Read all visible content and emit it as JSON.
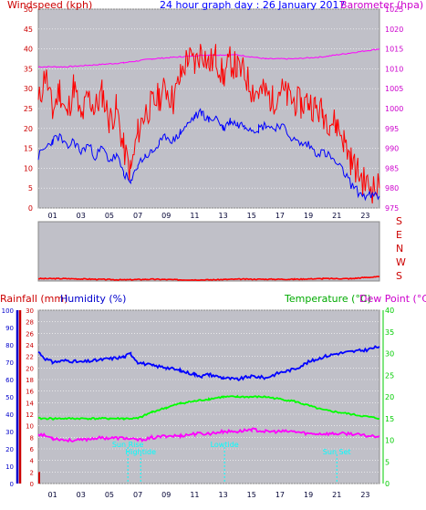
{
  "colors": {
    "plot_bg": "#c0c0c8",
    "wind": "#ff0000",
    "gust": "#0000ff",
    "barometer": "#ff00ff",
    "direction": "#ff0000",
    "rain": "#cc0000",
    "humidity": "#0000ff",
    "temperature": "#00ff00",
    "dewpoint": "#ff00ff",
    "sun_moon": "#00ffff",
    "rain_axis_text": "#cc0000",
    "temp_axis_text": "#00cc00",
    "dew_axis_text": "#ff00ff",
    "title_text": "#0000ff"
  },
  "header": {
    "windspeed_label": "Windspeed (kph)",
    "title": "24 hour graph day : 26 January 2017",
    "barometer_label": "Barometer (hpa)",
    "rainfall_label": "Rainfall (mm)",
    "humidity_label": "Humidity (%)",
    "temperature_label": "Temperature (°C)",
    "dewpoint_label": "Dew Point (°C)"
  },
  "direction_labels": [
    "S",
    "E",
    "N",
    "W",
    "S"
  ],
  "x_hour_labels": [
    "01",
    "03",
    "05",
    "07",
    "09",
    "11",
    "13",
    "15",
    "17",
    "19",
    "21",
    "23"
  ],
  "chart_data": [
    {
      "type": "line",
      "title": "24 hour graph day : 26 January 2017",
      "x_unit": "hour",
      "y_left": {
        "label": "Windspeed (kph)",
        "range": [
          0,
          50
        ],
        "ticks": [
          0,
          5,
          10,
          15,
          20,
          25,
          30,
          35,
          40,
          45,
          50
        ]
      },
      "y_right": {
        "label": "Barometer (hpa)",
        "range": [
          975,
          1025
        ],
        "ticks": [
          975,
          980,
          985,
          990,
          995,
          1000,
          1005,
          1010,
          1015,
          1020,
          1025
        ]
      },
      "series": [
        {
          "axis": "left",
          "x": [
            0,
            0.5,
            1,
            1.5,
            2,
            2.5,
            3,
            3.5,
            4,
            4.5,
            5,
            5.5,
            6,
            6.5,
            7,
            7.5,
            8,
            8.5,
            9,
            9.5,
            10,
            10.5,
            11,
            11.5,
            12,
            12.5,
            13,
            13.5,
            14,
            14.5,
            15,
            15.5,
            16,
            16.5,
            17,
            17.5,
            18,
            18.5,
            19,
            19.5,
            20,
            20.5,
            21,
            21.5,
            22,
            22.5,
            23,
            23.5,
            24
          ],
          "y": [
            26,
            34,
            24,
            30,
            23,
            31,
            22,
            28,
            25,
            29,
            22,
            25,
            15,
            9,
            19,
            24,
            26,
            28,
            30,
            27,
            33,
            38,
            36,
            40,
            36,
            38,
            33,
            37,
            35,
            34,
            30,
            29,
            29,
            27,
            30,
            28,
            27,
            26,
            27,
            25,
            24,
            22,
            21,
            17,
            12,
            9,
            6,
            5,
            5
          ]
        },
        {
          "axis": "left",
          "x": [
            0,
            0.5,
            1,
            1.5,
            2,
            2.5,
            3,
            3.5,
            4,
            4.5,
            5,
            5.5,
            6,
            6.5,
            7,
            7.5,
            8,
            8.5,
            9,
            9.5,
            10,
            10.5,
            11,
            11.5,
            12,
            12.5,
            13,
            13.5,
            14,
            14.5,
            15,
            15.5,
            16,
            16.5,
            17,
            17.5,
            18,
            18.5,
            19,
            19.5,
            20,
            20.5,
            21,
            21.5,
            22,
            22.5,
            23,
            23.5,
            24
          ],
          "y": [
            13,
            15,
            17,
            18,
            15,
            17,
            14,
            16,
            13,
            15,
            12,
            13,
            9,
            6,
            11,
            13,
            14,
            16,
            18,
            17,
            19,
            21,
            23,
            24,
            22,
            23,
            20,
            22,
            21,
            21,
            20,
            20,
            21,
            20,
            21,
            19,
            17,
            16,
            16,
            14,
            14,
            13,
            11,
            9,
            6,
            4,
            3,
            3,
            3
          ]
        },
        {
          "axis": "right",
          "x": [
            0,
            2,
            4,
            6,
            8,
            10,
            12,
            14,
            16,
            18,
            20,
            22,
            24
          ],
          "y": [
            1010.5,
            1010.5,
            1011,
            1011.5,
            1012.5,
            1013,
            1013.5,
            1013.5,
            1012.5,
            1012.5,
            1013,
            1014,
            1015
          ]
        }
      ]
    },
    {
      "type": "line",
      "x_unit": "hour",
      "y_labels": [
        "S",
        "E",
        "N",
        "W",
        "S"
      ],
      "series": [
        {
          "x": [
            0,
            2,
            4,
            6,
            8,
            10,
            12,
            14,
            16,
            18,
            20,
            22,
            23,
            24
          ],
          "y": [
            0.04,
            0.04,
            0.03,
            0.02,
            0.03,
            0.02,
            0.02,
            0.03,
            0.03,
            0.03,
            0.04,
            0.04,
            0.06,
            0.07
          ]
        }
      ]
    },
    {
      "type": "line",
      "x_unit": "hour",
      "y_left_rain": {
        "label": "Rainfall (mm)",
        "range": [
          0,
          30
        ],
        "ticks": [
          0,
          2,
          4,
          6,
          8,
          10,
          12,
          14,
          16,
          18,
          20,
          22,
          24,
          26,
          28,
          30
        ]
      },
      "y_left_humidity": {
        "label": "Humidity (%)",
        "range": [
          0,
          100
        ],
        "ticks": [
          0,
          10,
          20,
          30,
          40,
          50,
          60,
          70,
          80,
          90,
          100
        ]
      },
      "y_right": {
        "label": "Temperature (°C)",
        "range": [
          0,
          40
        ],
        "ticks": [
          0,
          5,
          10,
          15,
          20,
          25,
          30,
          35,
          40
        ]
      },
      "series": [
        {
          "axis": "rain",
          "x": [
            0,
            0.25
          ],
          "y": [
            2,
            2
          ]
        },
        {
          "axis": "humidity",
          "x": [
            0,
            0.5,
            1,
            2,
            3,
            4,
            5,
            6,
            6.5,
            7,
            8,
            9,
            10,
            11,
            11.5,
            12,
            13,
            14,
            15,
            16,
            17,
            18,
            19,
            20,
            21,
            22,
            23,
            24
          ],
          "y": [
            76,
            72,
            70,
            71,
            70,
            71,
            72,
            73,
            75,
            70,
            68,
            67,
            65,
            63,
            62,
            63,
            61,
            60,
            62,
            61,
            64,
            66,
            70,
            73,
            75,
            76,
            77,
            79
          ]
        },
        {
          "axis": "temperature",
          "x": [
            0,
            1,
            2,
            3,
            4,
            5,
            6,
            7,
            8,
            9,
            10,
            11,
            12,
            13,
            14,
            15,
            16,
            17,
            18,
            19,
            20,
            21,
            22,
            23,
            24
          ],
          "y": [
            15,
            15,
            15,
            15,
            15,
            15,
            15,
            15,
            16.5,
            17.5,
            18.5,
            19,
            19.5,
            20,
            20,
            20,
            20,
            19.5,
            19,
            18,
            17,
            16.5,
            16,
            15.5,
            15
          ]
        },
        {
          "axis": "temperature",
          "x": [
            0,
            1,
            2,
            3,
            4,
            5,
            6,
            7,
            8,
            9,
            10,
            11,
            12,
            13,
            14,
            15,
            16,
            17,
            18,
            19,
            20,
            21,
            22,
            23,
            24
          ],
          "y": [
            11.5,
            10.5,
            10,
            10,
            10.5,
            10.5,
            10.5,
            10,
            10.5,
            11,
            11,
            11.5,
            11.5,
            12,
            12,
            12.5,
            12,
            12,
            12,
            11.5,
            11.5,
            11.5,
            11.5,
            11,
            11
          ]
        }
      ],
      "events": [
        {
          "label": "Sun Rise",
          "x": 6.3
        },
        {
          "label": "Hightide",
          "x": 7.2
        },
        {
          "label": "Lowtide",
          "x": 13.1
        },
        {
          "label": "Sun Set",
          "x": 21.0
        }
      ]
    }
  ]
}
